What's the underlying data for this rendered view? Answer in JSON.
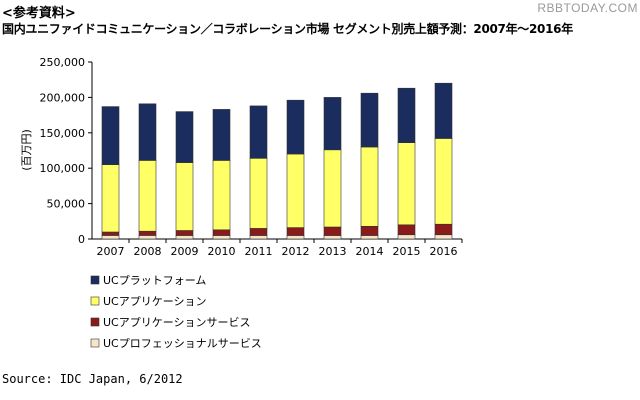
{
  "header": {
    "note": "<参考資料>",
    "title": "国内ユニファイドコミュニケーション／コラボレーション市場 セグメント別売上額予測：2007年〜2016年",
    "watermark": "RBBTODAY.COM"
  },
  "footer": {
    "source": "Source: IDC Japan, 6/2012"
  },
  "colors": {
    "platform": "#1a2d5e",
    "application": "#ffff66",
    "app_service": "#8b1a1a",
    "pro_service": "#f5e6c8"
  },
  "chart_data": {
    "type": "bar",
    "stacked": true,
    "title": "国内ユニファイドコミュニケーション／コラボレーション市場 セグメント別売上額予測：2007年〜2016年",
    "ylabel": "(百万円)",
    "xlabel": "",
    "ylim": [
      0,
      250000
    ],
    "yticks": [
      "0",
      "50,000",
      "100,000",
      "150,000",
      "200,000",
      "250,000"
    ],
    "grid": false,
    "legend_position": "bottom",
    "categories": [
      "2007",
      "2008",
      "2009",
      "2010",
      "2011",
      "2012",
      "2013",
      "2014",
      "2015",
      "2016"
    ],
    "series": [
      {
        "name": "UCプロフェッショナルサービス",
        "color": "#f5e6c8",
        "values": [
          5000,
          5000,
          5000,
          5000,
          5000,
          5000,
          5000,
          5000,
          6000,
          6000
        ]
      },
      {
        "name": "UCアプリケーションサービス",
        "color": "#8b1a1a",
        "values": [
          5000,
          6000,
          7000,
          8000,
          10000,
          11000,
          12000,
          13000,
          14000,
          15000
        ]
      },
      {
        "name": "UCアプリケーション",
        "color": "#ffff66",
        "values": [
          95000,
          100000,
          96000,
          98000,
          99000,
          104000,
          109000,
          112000,
          116000,
          121000
        ]
      },
      {
        "name": "UCプラットフォーム",
        "color": "#1a2d5e",
        "values": [
          82000,
          80000,
          72000,
          72000,
          74000,
          76000,
          74000,
          76000,
          77000,
          78000
        ]
      }
    ],
    "legend": [
      {
        "label": "UCプラットフォーム",
        "color": "#1a2d5e"
      },
      {
        "label": "UCアプリケーション",
        "color": "#ffff66"
      },
      {
        "label": "UCアプリケーションサービス",
        "color": "#8b1a1a"
      },
      {
        "label": "UCプロフェッショナルサービス",
        "color": "#f5e6c8"
      }
    ]
  }
}
